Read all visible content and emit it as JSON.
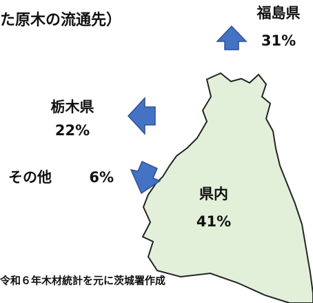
{
  "title": "た原木の流通先）",
  "destinations": [
    {
      "name": "福島県",
      "share": "31%"
    },
    {
      "name": "栃木県",
      "share": "22%"
    },
    {
      "name": "その他",
      "share": "6%"
    },
    {
      "name": "県内",
      "share": "41%"
    }
  ],
  "footer": "令和６年木材統計を元に茨城署作成"
}
